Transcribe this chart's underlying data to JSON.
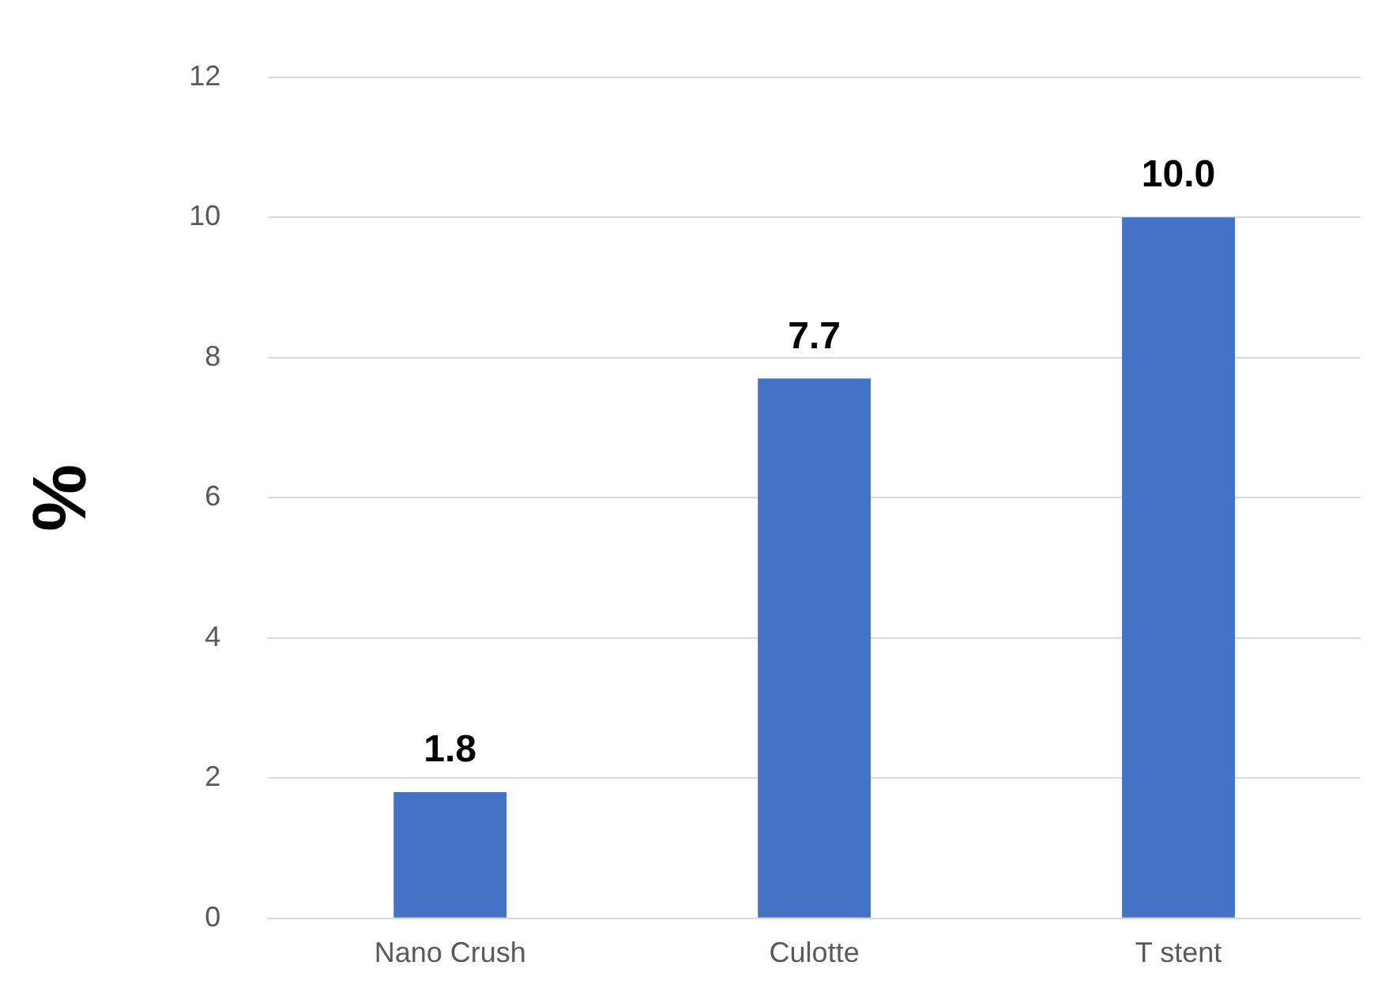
{
  "chart_data": {
    "type": "bar",
    "ylabel": "%",
    "categories": [
      "Nano Crush",
      "Culotte",
      "T stent"
    ],
    "values": [
      1.8,
      7.7,
      10.0
    ],
    "value_labels": [
      "1.8",
      "7.7",
      "10.0"
    ],
    "color": "#4472c4",
    "ylim": [
      0,
      12
    ],
    "yticks": [
      0,
      2,
      4,
      6,
      8,
      10,
      12
    ],
    "grid": "y"
  }
}
